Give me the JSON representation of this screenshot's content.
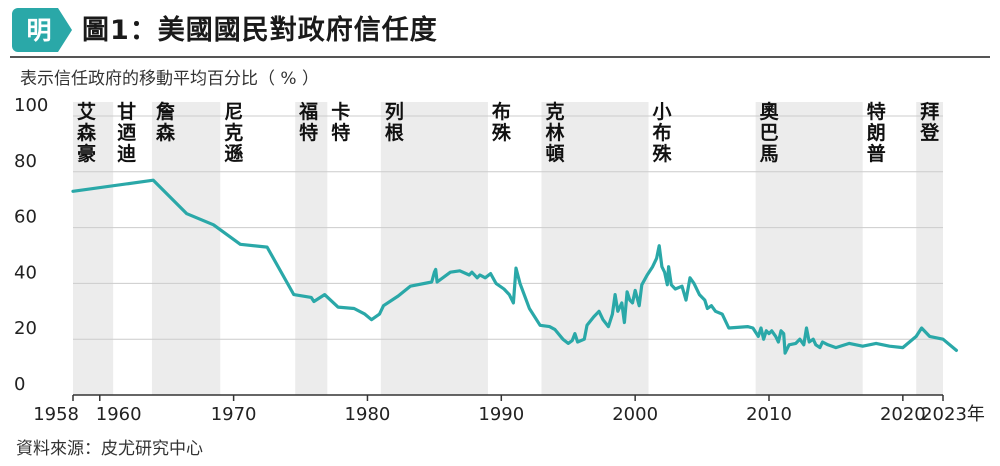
{
  "header": {
    "logo_char": "明",
    "title": "圖1：美國國民對政府信任度",
    "subtitle": "表示信任政府的移動平均百分比（ % ）"
  },
  "source": "資料來源：皮尤研究中心",
  "colors": {
    "line": "#2aa8a8",
    "band": "#ececec",
    "logo": "#2aa8a8",
    "grid": "#cccccc",
    "axis": "#333333"
  },
  "chart_data": {
    "type": "line",
    "title": "圖1：美國國民對政府信任度",
    "subtitle": "表示信任政府的移動平均百分比（ % ）",
    "xlim": [
      1958,
      2023
    ],
    "ylim": [
      0,
      100
    ],
    "grid": true,
    "x_tick_labels": [
      {
        "x": 1958,
        "label": "1958"
      },
      {
        "x": 1960,
        "label": "1960"
      },
      {
        "x": 1970,
        "label": "1970"
      },
      {
        "x": 1980,
        "label": "1980"
      },
      {
        "x": 1990,
        "label": "1990"
      },
      {
        "x": 2000,
        "label": "2000"
      },
      {
        "x": 2010,
        "label": "2010"
      },
      {
        "x": 2020,
        "label": "2020"
      },
      {
        "x": 2023,
        "label": "2023年"
      }
    ],
    "y_ticks": [
      0,
      20,
      40,
      60,
      80,
      100
    ],
    "presidents": [
      {
        "name": "艾森豪",
        "start": 1958.0,
        "end": 1961.0,
        "shaded": true
      },
      {
        "name": "甘迺迪",
        "start": 1961.0,
        "end": 1963.9,
        "shaded": false
      },
      {
        "name": "詹森",
        "start": 1963.9,
        "end": 1969.0,
        "shaded": true
      },
      {
        "name": "尼克遜",
        "start": 1969.0,
        "end": 1974.6,
        "shaded": false
      },
      {
        "name": "福特",
        "start": 1974.6,
        "end": 1977.0,
        "shaded": true
      },
      {
        "name": "卡特",
        "start": 1977.0,
        "end": 1981.0,
        "shaded": false
      },
      {
        "name": "列根",
        "start": 1981.0,
        "end": 1989.0,
        "shaded": true
      },
      {
        "name": "布殊",
        "start": 1989.0,
        "end": 1993.0,
        "shaded": false
      },
      {
        "name": "克林頓",
        "start": 1993.0,
        "end": 2001.0,
        "shaded": true
      },
      {
        "name": "小布殊",
        "start": 2001.0,
        "end": 2009.0,
        "shaded": false
      },
      {
        "name": "奧巴馬",
        "start": 2009.0,
        "end": 2017.0,
        "shaded": true
      },
      {
        "name": "特朗普",
        "start": 2017.0,
        "end": 2021.0,
        "shaded": false
      },
      {
        "name": "拜登",
        "start": 2021.0,
        "end": 2023.0,
        "shaded": true
      }
    ],
    "series": [
      {
        "points": [
          [
            1958.0,
            73
          ],
          [
            1964.0,
            77
          ],
          [
            1966.5,
            65
          ],
          [
            1968.5,
            61
          ],
          [
            1970.5,
            54
          ],
          [
            1972.5,
            53
          ],
          [
            1974.5,
            36
          ],
          [
            1975.8,
            35
          ],
          [
            1976.0,
            33.5
          ],
          [
            1976.8,
            36
          ],
          [
            1977.8,
            31.5
          ],
          [
            1979.0,
            31
          ],
          [
            1979.8,
            29
          ],
          [
            1980.3,
            27
          ],
          [
            1980.9,
            29
          ],
          [
            1981.2,
            32
          ],
          [
            1982.3,
            35.5
          ],
          [
            1983.2,
            39
          ],
          [
            1984.8,
            40.5
          ],
          [
            1985.0,
            44
          ],
          [
            1985.1,
            45
          ],
          [
            1985.2,
            40.5
          ],
          [
            1986.2,
            44
          ],
          [
            1986.9,
            44.5
          ],
          [
            1987.6,
            43
          ],
          [
            1987.8,
            44
          ],
          [
            1988.2,
            42
          ],
          [
            1988.4,
            43
          ],
          [
            1988.8,
            42
          ],
          [
            1989.2,
            43.5
          ],
          [
            1989.6,
            40
          ],
          [
            1990.2,
            38
          ],
          [
            1990.6,
            36
          ],
          [
            1990.9,
            33
          ],
          [
            1991.1,
            45.5
          ],
          [
            1991.4,
            40
          ],
          [
            1992.1,
            31
          ],
          [
            1992.9,
            25
          ],
          [
            1993.6,
            24.5
          ],
          [
            1994.0,
            23.5
          ],
          [
            1994.6,
            20
          ],
          [
            1995.0,
            18.5
          ],
          [
            1995.3,
            19.5
          ],
          [
            1995.5,
            22
          ],
          [
            1995.7,
            19
          ],
          [
            1996.2,
            20
          ],
          [
            1996.4,
            25
          ],
          [
            1996.9,
            28
          ],
          [
            1997.3,
            30
          ],
          [
            1997.6,
            27
          ],
          [
            1998.0,
            24.5
          ],
          [
            1998.3,
            29
          ],
          [
            1998.5,
            36
          ],
          [
            1998.7,
            30
          ],
          [
            1999.0,
            33
          ],
          [
            1999.2,
            26
          ],
          [
            1999.4,
            37
          ],
          [
            1999.6,
            34
          ],
          [
            1999.8,
            33
          ],
          [
            2000.0,
            37.5
          ],
          [
            2000.3,
            32
          ],
          [
            2000.5,
            39.5
          ],
          [
            2000.9,
            43
          ],
          [
            2001.3,
            46
          ],
          [
            2001.6,
            49
          ],
          [
            2001.8,
            53.5
          ],
          [
            2002.0,
            46
          ],
          [
            2002.2,
            44
          ],
          [
            2002.4,
            39.5
          ],
          [
            2002.5,
            46
          ],
          [
            2002.7,
            39.5
          ],
          [
            2003.0,
            38
          ],
          [
            2003.5,
            39
          ],
          [
            2003.8,
            34
          ],
          [
            2004.1,
            42
          ],
          [
            2004.4,
            40
          ],
          [
            2004.8,
            36
          ],
          [
            2005.2,
            34
          ],
          [
            2005.4,
            31
          ],
          [
            2005.7,
            32
          ],
          [
            2006.0,
            30
          ],
          [
            2006.5,
            29
          ],
          [
            2007.0,
            24
          ],
          [
            2008.4,
            24.5
          ],
          [
            2008.8,
            24
          ],
          [
            2009.2,
            21
          ],
          [
            2009.4,
            24
          ],
          [
            2009.6,
            20
          ],
          [
            2009.8,
            23
          ],
          [
            2010.0,
            22
          ],
          [
            2010.2,
            23
          ],
          [
            2010.5,
            21
          ],
          [
            2010.7,
            19
          ],
          [
            2010.9,
            23
          ],
          [
            2011.1,
            22
          ],
          [
            2011.2,
            15
          ],
          [
            2011.5,
            18
          ],
          [
            2012.0,
            18.5
          ],
          [
            2012.3,
            20
          ],
          [
            2012.6,
            18
          ],
          [
            2012.8,
            24
          ],
          [
            2013.0,
            19
          ],
          [
            2013.3,
            20
          ],
          [
            2013.5,
            18
          ],
          [
            2013.8,
            17
          ],
          [
            2014.0,
            19
          ],
          [
            2014.4,
            18
          ],
          [
            2015.0,
            17
          ],
          [
            2016.0,
            18.5
          ],
          [
            2017.0,
            17.5
          ],
          [
            2018.0,
            18.5
          ],
          [
            2019.0,
            17.5
          ],
          [
            2020.0,
            17
          ],
          [
            2021.0,
            21
          ],
          [
            2021.4,
            24
          ],
          [
            2022.0,
            21
          ],
          [
            2023.0,
            20
          ],
          [
            2024.0,
            16
          ]
        ]
      }
    ]
  }
}
